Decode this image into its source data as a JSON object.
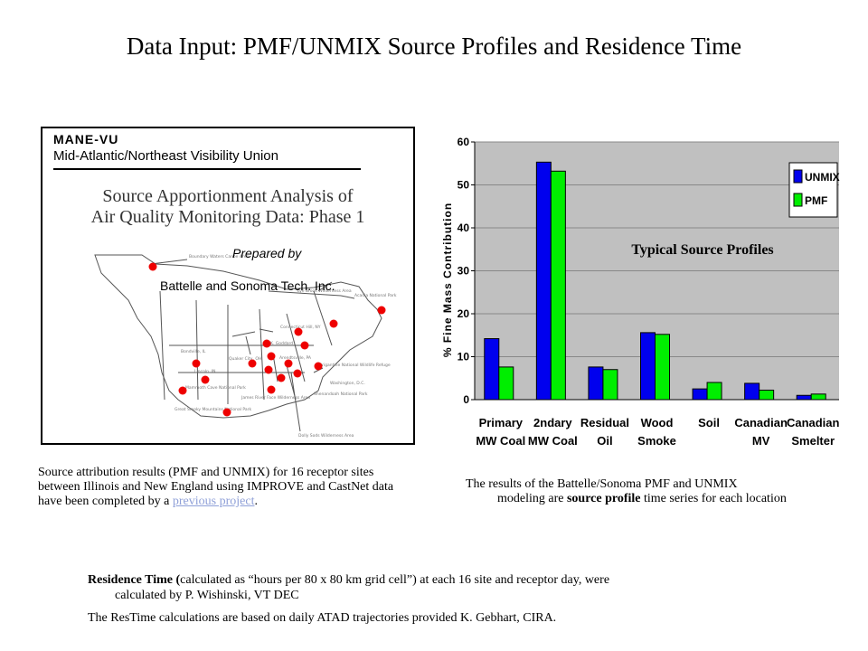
{
  "slide": {
    "title": "Data Input: PMF/UNMIX Source Profiles and Residence Time"
  },
  "report_cover": {
    "org_short": "MANE-VU",
    "org_long": "Mid-Atlantic/Northeast Visibility Union",
    "title_line1": "Source Apportionment Analysis of",
    "title_line2": "Air Quality Monitoring Data:  Phase 1",
    "prepared_label": "Prepared by",
    "prepared_by": "Battelle and Sonoma Tech. Inc.",
    "site_labels": [
      "Boundary Waters Canoe Area",
      "Lye Brook Wilderness Area",
      "Acadia National Park",
      "Connecticut Hill, NY",
      "K. Goddard",
      "Arendtsville, PA",
      "Quaker City, OH",
      "Bondville, IL",
      "Lincoln, IN",
      "Mammoth Cave National Park",
      "Great Smoky Mountains National Park",
      "Washington, D.C.",
      "Brigantine National Wildlife Refuge",
      "Shenandoah National Park",
      "James River Face Wilderness Area",
      "Dolly Sods Wilderness Area"
    ]
  },
  "left_caption": {
    "text": "Source attribution results (PMF and UNMIX) for 16 receptor sites between Illinois and New England using IMPROVE and CastNet data have been completed by a ",
    "link": "previous project",
    "end": "."
  },
  "right_caption": {
    "first": "The results of the Battelle/Sonoma PMF and UNMIX",
    "pre": "modeling are ",
    "bold": "source profile",
    "post": " time series for each location"
  },
  "residence": {
    "bold": "Residence Time (",
    "text": "calculated as “hours per 80 x 80 km grid cell”)  at each 16 site and receptor day, were",
    "cont": "calculated by P. Wishinski, VT DEC"
  },
  "restime_note": "The ResTime calculations are based on daily ATAD trajectories provided K. Gebhart, CIRA.",
  "chart_data": {
    "type": "bar",
    "title": "Typical Source Profiles",
    "ylabel": "% Fine Mass Contribution",
    "xlabel": "",
    "ylim": [
      0,
      60
    ],
    "yticks": [
      0,
      10,
      20,
      30,
      40,
      50,
      60
    ],
    "grid": true,
    "legend": "top-right",
    "categories": [
      [
        "Primary",
        "MW Coal"
      ],
      [
        "2ndary",
        "MW Coal"
      ],
      [
        "Residual",
        "Oil"
      ],
      [
        "Wood",
        "Smoke"
      ],
      [
        "Soil",
        ""
      ],
      [
        "Canadian",
        "MV"
      ],
      [
        "Canadian",
        "Smelter"
      ]
    ],
    "series": [
      {
        "name": "UNMIX",
        "color": "#0000ee",
        "values": [
          14.2,
          55.3,
          7.6,
          15.6,
          2.5,
          3.8,
          1.0
        ]
      },
      {
        "name": "PMF",
        "color": "#00ee00",
        "values": [
          7.6,
          53.2,
          7.0,
          15.2,
          4.0,
          2.2,
          1.3
        ]
      }
    ],
    "plot_bg": "#c0c0c0"
  }
}
